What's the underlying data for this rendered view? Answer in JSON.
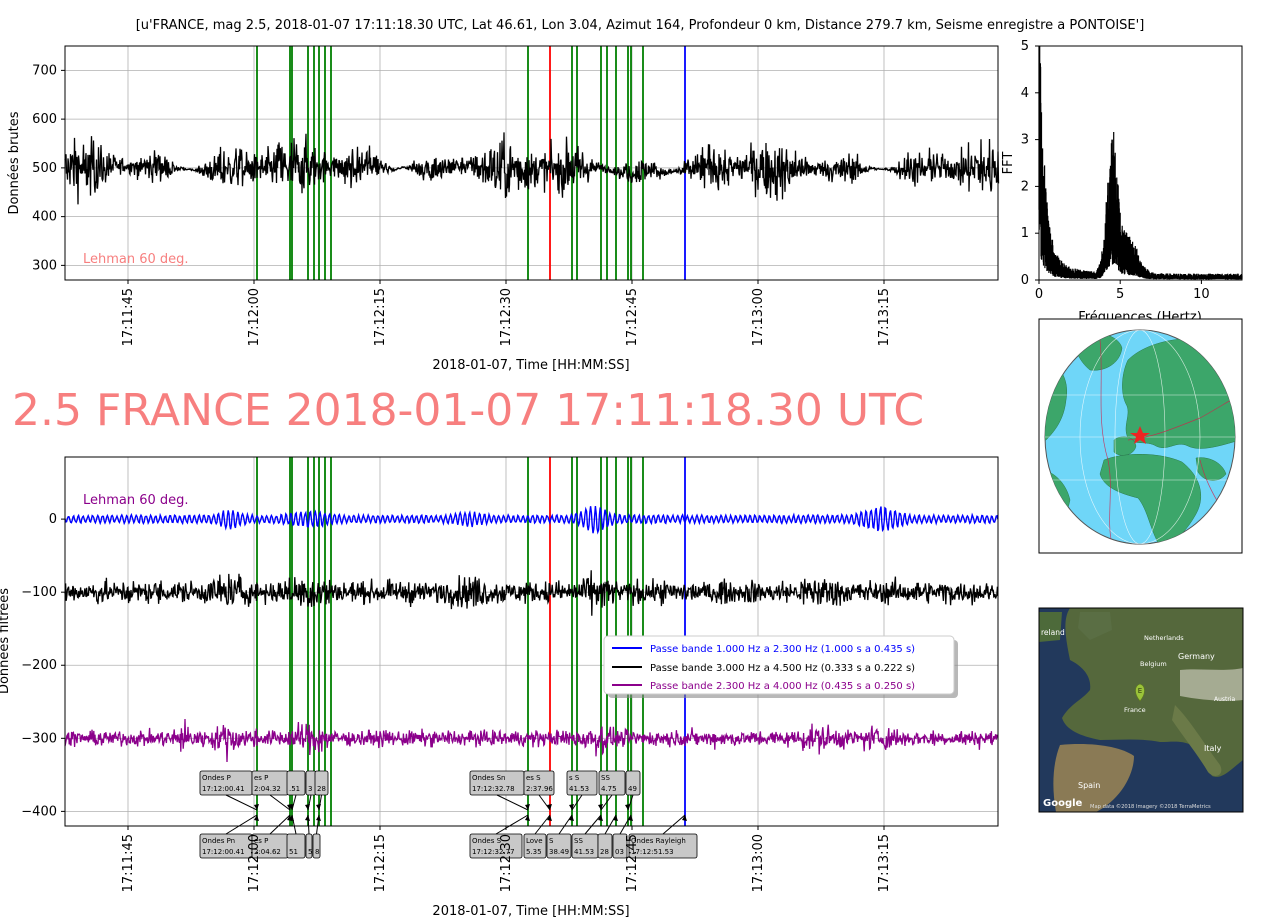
{
  "figure": {
    "header": "[u'FRANCE, mag 2.5, 2018-01-07 17:11:18.30 UTC, Lat 46.61, Lon 3.04, Azimut 164, Profondeur 0 km, Distance 279.7 km, Seisme enregistre a PONTOISE']",
    "big_title": "2.5 FRANCE 2018-01-07 17:11:18.30 UTC",
    "big_title_color": "#f77f7f"
  },
  "colors": {
    "phase_green": "#008000",
    "phase_red": "#ff0000",
    "phase_blue": "#0000ff",
    "raw_trace": "#000000",
    "filter_blue": "#0000ff",
    "filter_black": "#000000",
    "filter_purple": "#8b008b",
    "ocean": "#6fd6f8",
    "land": "#3ca66a"
  },
  "chart_data": [
    {
      "type": "line",
      "name": "raw",
      "ylabel": "Données brutes",
      "xlabel": "2018-01-07, Time [HH:MM:SS]",
      "xticks": [
        "17:11:45",
        "17:12:00",
        "17:12:15",
        "17:12:30",
        "17:12:45",
        "17:13:00",
        "17:13:15"
      ],
      "yticks": [
        "300",
        "400",
        "500",
        "600",
        "700"
      ],
      "ylim": [
        270,
        750
      ],
      "grid": true,
      "annotation": "Lehman 60 deg.",
      "annotation_color": "#f77f7f",
      "series": [
        {
          "baseline": 500,
          "amplitude": 150,
          "color": "#000000"
        }
      ]
    },
    {
      "type": "line",
      "name": "fft",
      "ylabel": "FFT",
      "xlabel": "Fréquences (Hertz)",
      "xticks": [
        "0",
        "5",
        "10"
      ],
      "yticks": [
        "0",
        "1",
        "2",
        "3",
        "4",
        "5"
      ],
      "xlim": [
        0,
        12.5
      ],
      "ylim": [
        0,
        5
      ],
      "peaks": [
        {
          "freq": 0.2,
          "value": 5.0
        },
        {
          "freq": 4.5,
          "value": 3.0
        }
      ]
    },
    {
      "type": "line",
      "name": "filtered",
      "ylabel": "Données filtrées",
      "xlabel": "2018-01-07, Time [HH:MM:SS]",
      "xticks": [
        "17:11:45",
        "17:12:00",
        "17:12:15",
        "17:12:30",
        "17:12:45",
        "17:13:00",
        "17:13:15"
      ],
      "yticks": [
        "0",
        "−100",
        "−200",
        "−300",
        "−400"
      ],
      "ylim": [
        -420,
        85
      ],
      "grid": true,
      "annotation": "Lehman 60 deg.",
      "annotation_color": "#8b008b",
      "legend_position": "center-right",
      "series": [
        {
          "name": "Passe bande 1.000 Hz a 2.300 Hz (1.000 s a 0.435 s)",
          "color": "#0000ff",
          "baseline": 0
        },
        {
          "name": "Passe bande 3.000 Hz a 4.500 Hz (0.333 s a 0.222 s)",
          "color": "#000000",
          "baseline": -100
        },
        {
          "name": "Passe bande 2.300 Hz a 4.000 Hz (0.435 s a 0.250 s)",
          "color": "#8b008b",
          "baseline": -300
        }
      ],
      "phase_labels_top": [
        {
          "name": "Ondes P",
          "time": "17:12:00.41"
        },
        {
          "name": "es P",
          "time": "2:04.32"
        },
        {
          "name": "",
          "time": ".51"
        },
        {
          "name": "",
          "time": "3"
        },
        {
          "name": "",
          "time": "28"
        },
        {
          "name": "Ondes Sn",
          "time": "17:12:32.78"
        },
        {
          "name": "es S",
          "time": "2:37.96"
        },
        {
          "name": "s S",
          "time": "41.53"
        },
        {
          "name": "SS",
          "time": "4.75"
        },
        {
          "name": "",
          "time": "49"
        }
      ],
      "phase_labels_bottom": [
        {
          "name": "Ondes Pn",
          "time": "17:12:00.41"
        },
        {
          "name": "es P",
          "time": "2:04.62"
        },
        {
          "name": "",
          "time": "51"
        },
        {
          "name": "",
          "time": "5"
        },
        {
          "name": "",
          "time": "8"
        },
        {
          "name": "Ondes S",
          "time": "17:12:32.77"
        },
        {
          "name": "Love",
          "time": "5.35"
        },
        {
          "name": "S",
          "time": "38.49"
        },
        {
          "name": "SS",
          "time": "41.53"
        },
        {
          "name": "",
          "time": "28"
        },
        {
          "name": "",
          "time": "03"
        },
        {
          "name": "Ondes Rayleigh",
          "time": "17:12:51.53"
        }
      ]
    }
  ],
  "map": {
    "labels": [
      "reland",
      "Netherlands",
      "Belgium",
      "Germany",
      "France",
      "Austria",
      "Italy",
      "Spain"
    ],
    "logo": "Google",
    "attribution": "Map data ©2018 Imagery ©2018 TerraMetrics"
  }
}
